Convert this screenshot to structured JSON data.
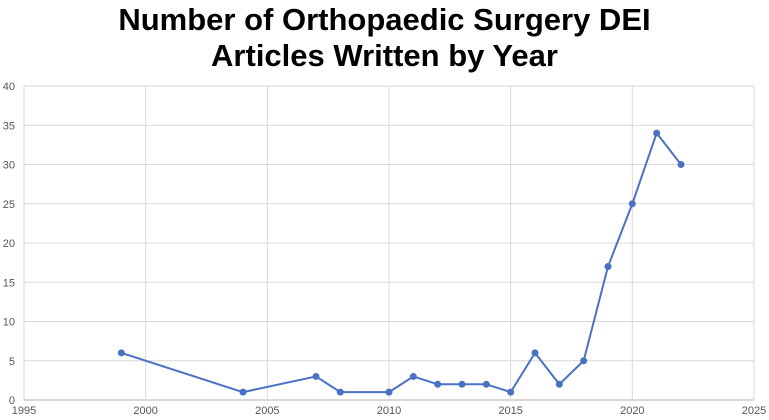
{
  "chart_data": {
    "type": "line",
    "title_lines": [
      "Number of Orthopaedic Surgery DEI",
      "Articles Written by Year"
    ],
    "xlabel": "",
    "ylabel": "",
    "xlim": [
      1995,
      2025
    ],
    "ylim": [
      0,
      40
    ],
    "x_ticks": [
      "1995",
      "2000",
      "2005",
      "2010",
      "2015",
      "2020",
      "2025"
    ],
    "y_ticks": [
      "0",
      "5",
      "10",
      "15",
      "20",
      "25",
      "30",
      "35",
      "40"
    ],
    "grid": true,
    "legend": "none",
    "series": [
      {
        "color": "#4a72c4",
        "x": [
          1999,
          2004,
          2007,
          2008,
          2010,
          2011,
          2012,
          2013,
          2014,
          2015,
          2016,
          2017,
          2018,
          2019,
          2020,
          2021,
          2022
        ],
        "y": [
          6,
          1,
          3,
          1,
          1,
          3,
          2,
          2,
          2,
          1,
          6,
          2,
          5,
          17,
          25,
          34,
          30
        ]
      }
    ]
  }
}
